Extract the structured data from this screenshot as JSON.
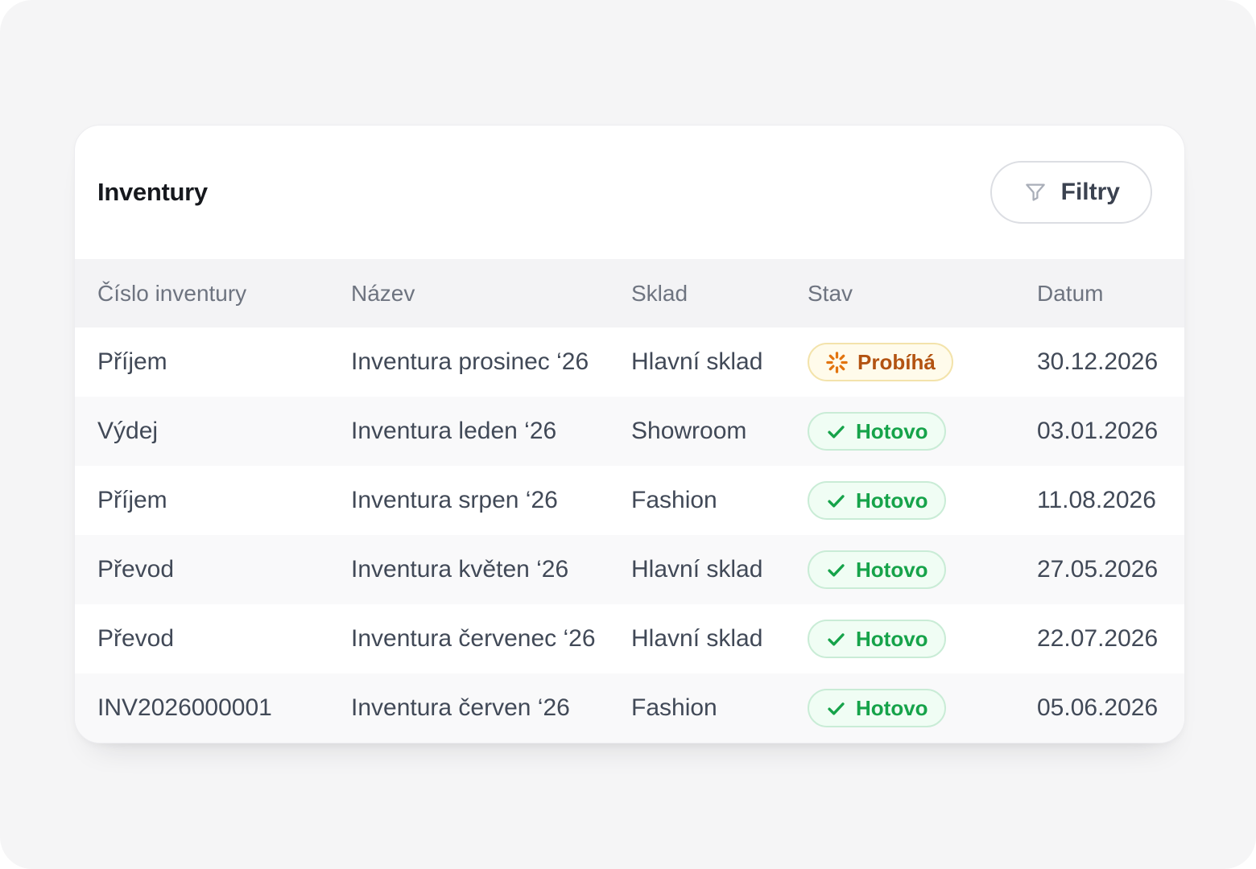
{
  "page": {
    "title": "Inventury"
  },
  "toolbar": {
    "filter_label": "Filtry",
    "filter_icon": "funnel-icon"
  },
  "table": {
    "columns": [
      "Číslo inventury",
      "Název",
      "Sklad",
      "Stav",
      "Datum"
    ],
    "rows": [
      {
        "number": "Příjem",
        "name": "Inventura prosinec ‘26",
        "warehouse": "Hlavní sklad",
        "status": "Probíhá",
        "status_state": "in-progress",
        "date": "30.12.2026"
      },
      {
        "number": "Výdej",
        "name": "Inventura leden ‘26",
        "warehouse": "Showroom",
        "status": "Hotovo",
        "status_state": "done",
        "date": "03.01.2026"
      },
      {
        "number": "Příjem",
        "name": "Inventura srpen ‘26",
        "warehouse": "Fashion",
        "status": "Hotovo",
        "status_state": "done",
        "date": "11.08.2026"
      },
      {
        "number": "Převod",
        "name": "Inventura květen ‘26",
        "warehouse": "Hlavní sklad",
        "status": "Hotovo",
        "status_state": "done",
        "date": "27.05.2026"
      },
      {
        "number": "Převod",
        "name": "Inventura červenec ‘26",
        "warehouse": "Hlavní sklad",
        "status": "Hotovo",
        "status_state": "done",
        "date": "22.07.2026"
      },
      {
        "number": "INV2026000001",
        "name": "Inventura červen ‘26",
        "warehouse": "Fashion",
        "status": "Hotovo",
        "status_state": "done",
        "date": "05.06.2026"
      }
    ]
  },
  "icons": {
    "filter": "funnel-icon",
    "done": "check-icon",
    "in_progress": "spinner-icon"
  },
  "colors": {
    "page_background": "#f5f5f6",
    "card_background": "#ffffff",
    "header_band": "#f3f3f5",
    "row_stripe": "#f9f9fa",
    "body_text": "#414957",
    "header_text": "#6e7480",
    "status_done_text": "#16a34a",
    "status_done_bg": "#f0fdf4",
    "status_done_border": "#c9ecd6",
    "status_progress_text": "#b35311",
    "status_progress_icon": "#e2740e",
    "status_progress_bg": "#fffbeb",
    "status_progress_border": "#f3e3ab"
  }
}
